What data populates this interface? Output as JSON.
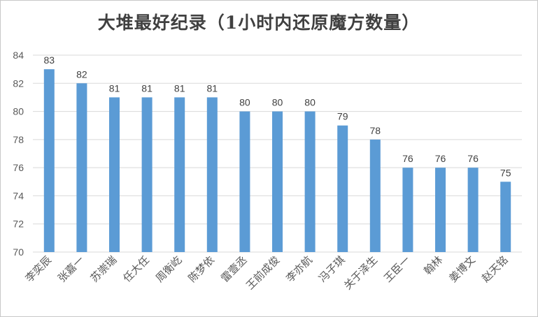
{
  "chart_data": {
    "type": "bar",
    "title": "大堆最好纪录（1小时内还原魔方数量）",
    "xlabel": "",
    "ylabel": "",
    "categories": [
      "李奕辰",
      "张嘉一",
      "苏崇瑞",
      "任大任",
      "周衡屹",
      "陈梦依",
      "雷壹丞",
      "王前成俊",
      "李亦航",
      "冯子琪",
      "关于泽生",
      "王臣一",
      "翰林",
      "姜博文",
      "赵天铭"
    ],
    "values": [
      83,
      82,
      81,
      81,
      81,
      81,
      80,
      80,
      80,
      79,
      78,
      76,
      76,
      76,
      75
    ],
    "ylim": [
      70,
      84
    ],
    "yticks": [
      70,
      72,
      74,
      76,
      78,
      80,
      82,
      84
    ],
    "grid": true,
    "legend": "none",
    "bar_color": "#5b9bd5"
  }
}
